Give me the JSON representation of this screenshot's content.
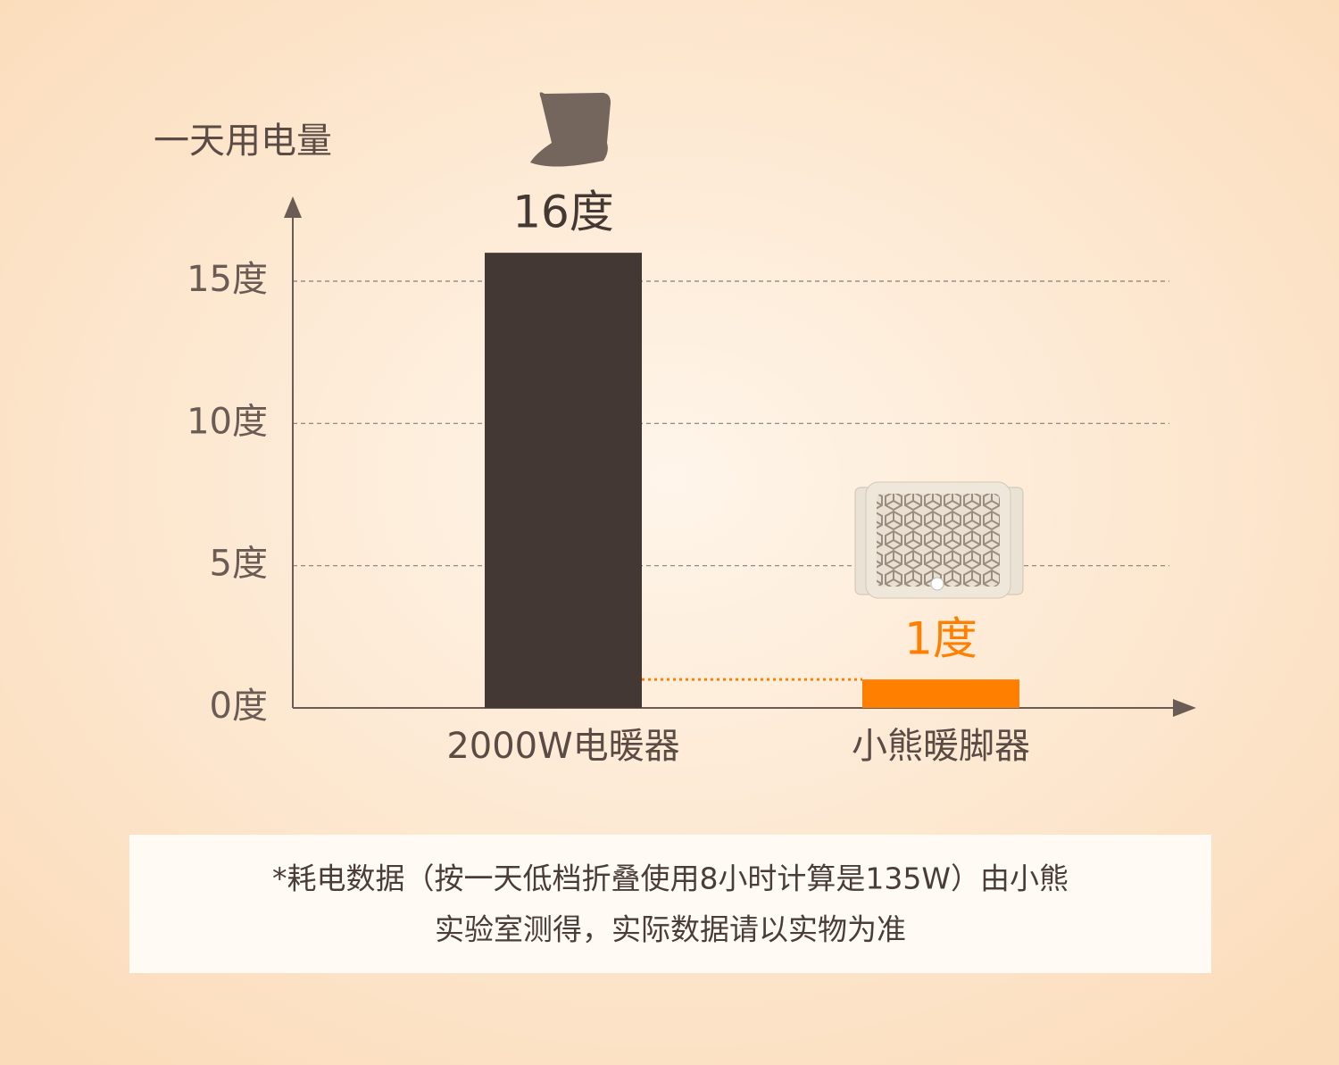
{
  "chart_data": {
    "type": "bar",
    "y_axis_label": "一天用电量",
    "categories": [
      "2000W电暖器",
      "小熊暖脚器"
    ],
    "values": [
      16,
      1
    ],
    "value_labels": [
      "16度",
      "1度"
    ],
    "colors": [
      "#433833",
      "#ff7f00"
    ],
    "ylim": [
      0,
      18
    ],
    "yticks": [
      {
        "value": 0,
        "label": "0度"
      },
      {
        "value": 5,
        "label": "5度"
      },
      {
        "value": 10,
        "label": "10度"
      },
      {
        "value": 15,
        "label": "15度"
      }
    ],
    "grid": true,
    "notes": [
      "*耗电数据（按一天低档折叠使用8小时计算是135W）由小熊",
      "实验室测得，实际数据请以实物为准"
    ]
  }
}
